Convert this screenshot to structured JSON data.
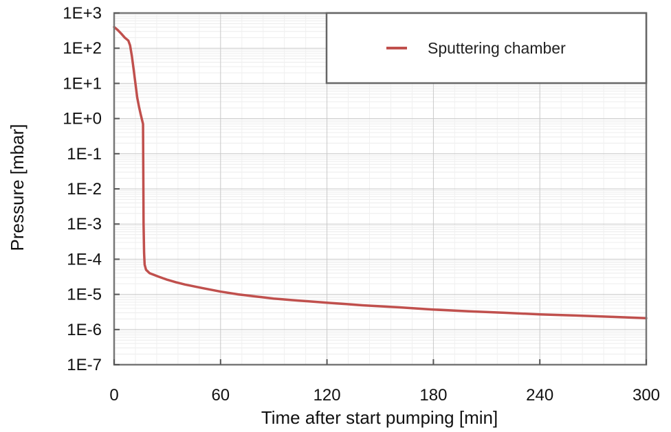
{
  "chart_data": {
    "type": "line",
    "xlabel": "Time after start pumping [min]",
    "ylabel": "Pressure [mbar]",
    "xlim": [
      0,
      300
    ],
    "ylim_log10": [
      -7,
      3
    ],
    "y_scale": "log",
    "x_ticks": [
      0,
      60,
      120,
      180,
      240,
      300
    ],
    "x_tick_labels": [
      "0",
      "60",
      "120",
      "180",
      "240",
      "300"
    ],
    "y_ticks_log10": [
      3,
      2,
      1,
      0,
      -1,
      -2,
      -3,
      -4,
      -5,
      -6,
      -7
    ],
    "y_tick_labels": [
      "1E+3",
      "1E+2",
      "1E+1",
      "1E+0",
      "1E-1",
      "1E-2",
      "1E-3",
      "1E-4",
      "1E-5",
      "1E-6",
      "1E-7"
    ],
    "grid": true,
    "legend_position": "top-right",
    "series": [
      {
        "name": "Sputtering chamber",
        "color": "#c0504d",
        "points": [
          [
            0,
            400
          ],
          [
            2,
            330
          ],
          [
            4,
            260
          ],
          [
            6,
            200
          ],
          [
            8,
            165
          ],
          [
            9,
            120
          ],
          [
            10,
            60
          ],
          [
            11,
            25
          ],
          [
            12,
            10
          ],
          [
            13,
            4
          ],
          [
            14,
            2.2
          ],
          [
            15,
            1.3
          ],
          [
            16.3,
            0.7
          ],
          [
            16.6,
            0.001
          ],
          [
            16.9,
            0.00015
          ],
          [
            17.2,
            7e-05
          ],
          [
            18,
            5e-05
          ],
          [
            20,
            4e-05
          ],
          [
            25,
            3.2e-05
          ],
          [
            30,
            2.6e-05
          ],
          [
            35,
            2.2e-05
          ],
          [
            40,
            1.9e-05
          ],
          [
            50,
            1.5e-05
          ],
          [
            60,
            1.2e-05
          ],
          [
            70,
            1e-05
          ],
          [
            80,
            8.7e-06
          ],
          [
            90,
            7.6e-06
          ],
          [
            100,
            6.9e-06
          ],
          [
            120,
            5.8e-06
          ],
          [
            140,
            4.9e-06
          ],
          [
            160,
            4.3e-06
          ],
          [
            180,
            3.7e-06
          ],
          [
            200,
            3.3e-06
          ],
          [
            220,
            3e-06
          ],
          [
            240,
            2.7e-06
          ],
          [
            260,
            2.5e-06
          ],
          [
            280,
            2.3e-06
          ],
          [
            300,
            2.1e-06
          ]
        ]
      }
    ]
  }
}
